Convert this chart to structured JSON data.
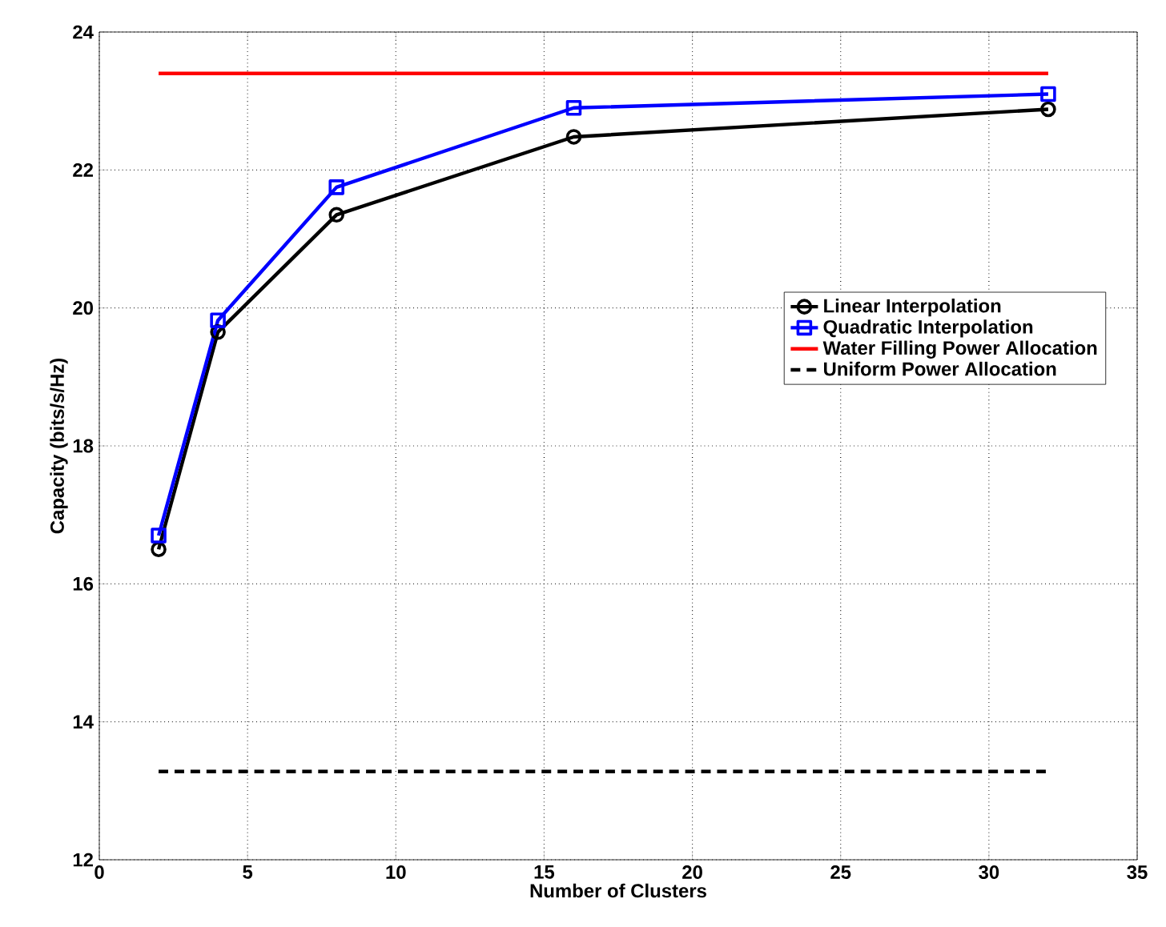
{
  "chart_data": {
    "type": "line",
    "xlabel": "Number of Clusters",
    "ylabel": "Capacity (bits/s/Hz)",
    "xlim": [
      0,
      35
    ],
    "ylim": [
      12,
      24
    ],
    "xticks": [
      0,
      5,
      10,
      15,
      20,
      25,
      30,
      35
    ],
    "yticks": [
      12,
      14,
      16,
      18,
      20,
      22,
      24
    ],
    "grid": true,
    "legend": "right",
    "series": [
      {
        "name": "Linear Interpolation",
        "color": "#000000",
        "marker": "circle",
        "line_style": "solid",
        "x": [
          2,
          4,
          8,
          16,
          32
        ],
        "values": [
          16.5,
          19.65,
          21.35,
          22.48,
          22.88
        ]
      },
      {
        "name": "Quadratic Interpolation",
        "color": "#0000ff",
        "marker": "square",
        "line_style": "solid",
        "x": [
          2,
          4,
          8,
          16,
          32
        ],
        "values": [
          16.7,
          19.82,
          21.75,
          22.9,
          23.1
        ]
      },
      {
        "name": "Water Filling Power Allocation",
        "color": "#ff0000",
        "marker": "none",
        "line_style": "solid",
        "x": [
          2,
          32
        ],
        "values": [
          23.4,
          23.4
        ]
      },
      {
        "name": "Uniform Power Allocation",
        "color": "#000000",
        "marker": "none",
        "line_style": "dashed",
        "x": [
          2,
          32
        ],
        "values": [
          13.28,
          13.28
        ]
      }
    ]
  }
}
